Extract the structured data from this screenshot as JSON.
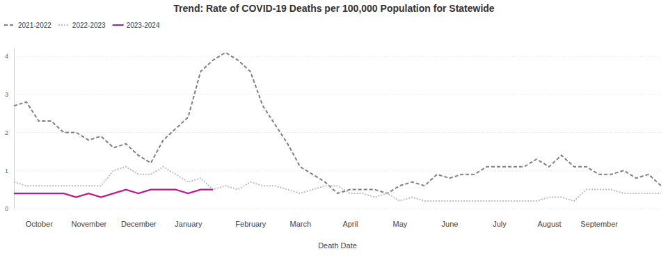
{
  "chart_data": {
    "type": "line",
    "title": "Trend: Rate of COVID-19 Deaths per 100,000 Population for Statewide",
    "x_label": "Death Date",
    "categories": [
      null,
      null,
      "October",
      null,
      null,
      null,
      "November",
      null,
      null,
      null,
      "December",
      null,
      null,
      null,
      "January",
      null,
      null,
      null,
      null,
      "February",
      null,
      null,
      null,
      "March",
      null,
      null,
      null,
      "April",
      null,
      null,
      null,
      "May",
      null,
      null,
      null,
      "June",
      null,
      null,
      null,
      "July",
      null,
      null,
      null,
      "August",
      null,
      null,
      null,
      "September",
      null,
      null,
      null,
      null,
      null
    ],
    "series": [
      {
        "name": "2021-2022",
        "color": "#7f7f7f",
        "line_style": "dashed",
        "values": [
          2.7,
          2.8,
          2.3,
          2.3,
          2.0,
          2.0,
          1.8,
          1.9,
          1.6,
          1.7,
          1.4,
          1.2,
          1.8,
          2.1,
          2.4,
          3.6,
          3.9,
          4.1,
          3.9,
          3.6,
          2.7,
          2.2,
          1.7,
          1.1,
          0.9,
          0.7,
          0.4,
          0.5,
          0.5,
          0.5,
          0.4,
          0.6,
          0.7,
          0.6,
          0.9,
          0.8,
          0.9,
          0.9,
          1.1,
          1.1,
          1.1,
          1.1,
          1.3,
          1.1,
          1.4,
          1.1,
          1.1,
          0.9,
          0.9,
          1.0,
          0.8,
          0.9,
          0.6
        ]
      },
      {
        "name": "2022-2023",
        "color": "#bdbdbd",
        "line_style": "dotted",
        "values": [
          0.7,
          0.6,
          0.6,
          0.6,
          0.6,
          0.6,
          0.6,
          0.6,
          1.0,
          1.1,
          0.9,
          0.9,
          1.1,
          0.9,
          0.7,
          0.8,
          0.5,
          0.6,
          0.5,
          0.7,
          0.6,
          0.6,
          0.5,
          0.4,
          0.5,
          0.6,
          0.6,
          0.4,
          0.4,
          0.3,
          0.4,
          0.2,
          0.3,
          0.2,
          0.2,
          0.2,
          0.2,
          0.2,
          0.2,
          0.2,
          0.2,
          0.2,
          0.2,
          0.3,
          0.3,
          0.2,
          0.5,
          0.5,
          0.5,
          0.4,
          0.4,
          0.4,
          0.4
        ]
      },
      {
        "name": "2023-2024",
        "color": "#c2188a",
        "line_style": "solid",
        "values": [
          0.4,
          0.4,
          0.4,
          0.4,
          0.4,
          0.3,
          0.4,
          0.3,
          0.4,
          0.5,
          0.4,
          0.5,
          0.5,
          0.5,
          0.4,
          0.5,
          0.5,
          null,
          null,
          null,
          null,
          null,
          null,
          null,
          null,
          null,
          null,
          null,
          null,
          null,
          null,
          null,
          null,
          null,
          null,
          null,
          null,
          null,
          null,
          null,
          null,
          null,
          null,
          null,
          null,
          null,
          null,
          null,
          null,
          null,
          null,
          null,
          null
        ]
      }
    ],
    "ylim": [
      0,
      4.2
    ],
    "yticks": [
      0,
      1,
      2,
      3,
      4
    ],
    "grid": true,
    "legend": "top-left"
  }
}
